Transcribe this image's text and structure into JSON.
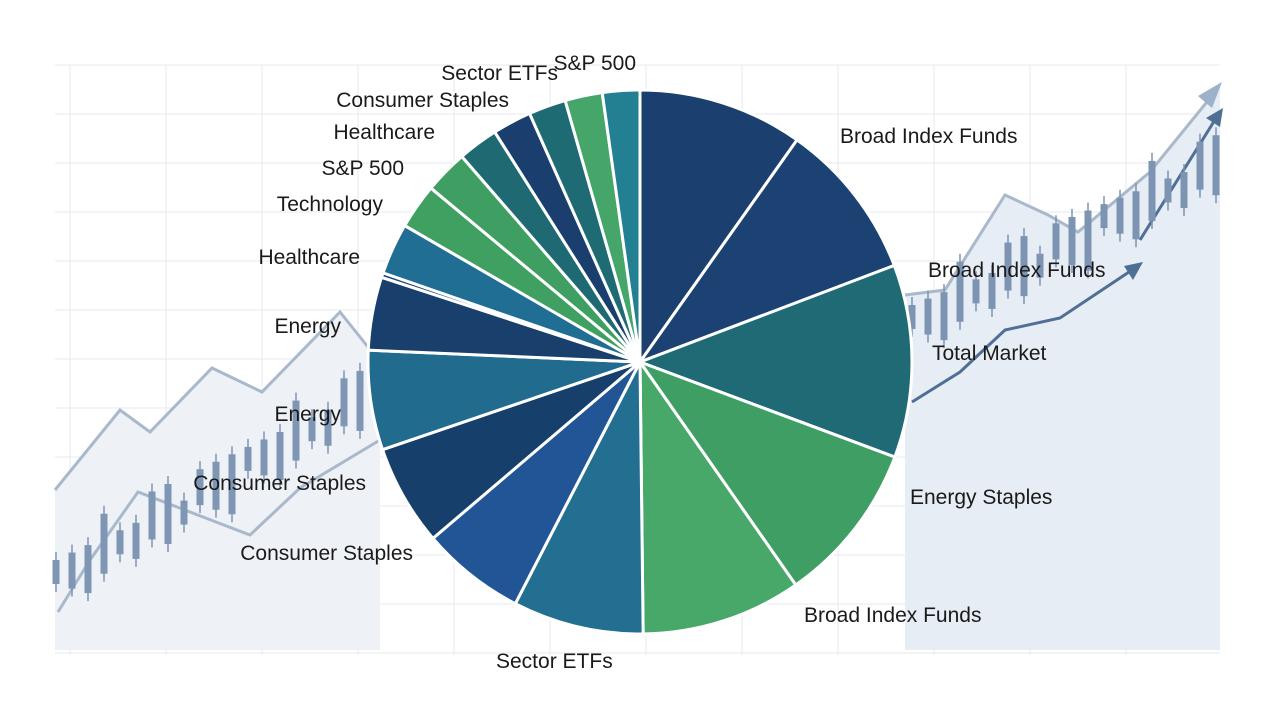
{
  "chart_data": {
    "type": "pie",
    "title": "",
    "colors": {
      "navy": "#1b3f6e",
      "teal": "#1f6a75",
      "green": "#46a868",
      "blue_teal": "#206f95",
      "mid_blue": "#215596",
      "dark_navy": "#17386a"
    },
    "slices": [
      {
        "label": "Broad Index Funds",
        "value": 10.6,
        "color": "#1b3f6e"
      },
      {
        "label": "Broad Index Funds",
        "value": 10.2,
        "color": "#1b4272"
      },
      {
        "label": "Total Market",
        "value": 12.4,
        "color": "#1f6a75"
      },
      {
        "label": "Energy Staples",
        "value": 10.4,
        "color": "#3f9e63"
      },
      {
        "label": "Broad Index Funds",
        "value": 10.3,
        "color": "#47a86a"
      },
      {
        "label": "Sector ETFs",
        "value": 8.4,
        "color": "#226f92"
      },
      {
        "label": "",
        "value": 6.7,
        "color": "#215596"
      },
      {
        "label": "Consumer Staples",
        "value": 6.5,
        "color": "#173f6c"
      },
      {
        "label": "Consumer Staples",
        "value": 6.4,
        "color": "#216b8f"
      },
      {
        "label": "Energy",
        "value": 4.7,
        "color": "#19406c"
      },
      {
        "label": "Energy",
        "value": 0.3,
        "color": "#1c4775"
      },
      {
        "label": "Healthcare",
        "value": 3.3,
        "color": "#216e95"
      },
      {
        "label": "Technology",
        "value": 2.9,
        "color": "#40a062"
      },
      {
        "label": "S&P 500",
        "value": 2.8,
        "color": "#3f9f62"
      },
      {
        "label": "Healthcare",
        "value": 2.6,
        "color": "#1f6a72"
      },
      {
        "label": "Consumer Staples",
        "value": 2.5,
        "color": "#1a3f6e"
      },
      {
        "label": "Sector ETFs",
        "value": 2.4,
        "color": "#1e6b73"
      },
      {
        "label": "",
        "value": 2.4,
        "color": "#46a569"
      },
      {
        "label": "S&P 500",
        "value": 2.4,
        "color": "#237f92"
      }
    ]
  }
}
